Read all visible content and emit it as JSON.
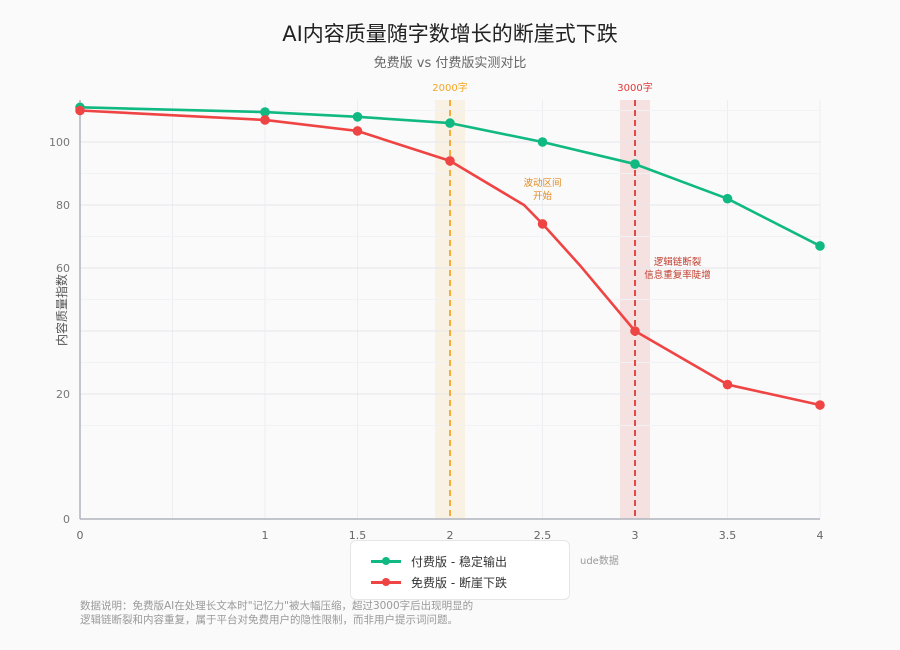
{
  "header": {
    "title": "AI内容质量随字数增长的断崖式下跌",
    "subtitle": "免费版 vs 付费版实测对比"
  },
  "footnote": {
    "line1": "数据说明：免费版AI在处理长文本时\"记忆力\"被大幅压缩，超过3000字后出现明显的",
    "line2": "逻辑链断裂和内容重复，属于平台对免费用户的隐性限制，而非用户提示词问题。"
  },
  "colors": {
    "paid": "#10b981",
    "free": "#ef4444",
    "mark2000": "#f5a623",
    "mark3000": "#e03a3a"
  },
  "chart_data": {
    "type": "line",
    "title": "AI内容质量随字数增长的断崖式下跌",
    "subtitle": "免费版 vs 付费版实测对比",
    "ylabel": "内容质量指数",
    "xlabel_visible_fragment": "ude数据",
    "x_ticks": [
      "0",
      "1",
      "1.5",
      "2",
      "2.5",
      "3",
      "3.5",
      "4"
    ],
    "y_ticks": [
      "100",
      "80",
      "60",
      "20",
      "0"
    ],
    "xlim": [
      0,
      4
    ],
    "grid": true,
    "legend_position": "bottom-center",
    "series": [
      {
        "name": "付费版 - 稳定输出",
        "color": "#10b981",
        "x": [
          0,
          1,
          1.5,
          2,
          2.5,
          3,
          3.5,
          4
        ],
        "y": [
          111,
          109.5,
          108,
          106,
          100,
          93,
          82,
          67
        ],
        "markers": [
          true,
          true,
          true,
          true,
          true,
          true,
          true,
          true
        ]
      },
      {
        "name": "免费版 - 断崖下跌",
        "color": "#ef4444",
        "x": [
          0,
          1,
          1.5,
          2,
          2.4,
          2.5,
          2.7,
          3,
          3.5,
          4
        ],
        "y": [
          110,
          107,
          103.5,
          94,
          80,
          74,
          61,
          40,
          23,
          16.5
        ],
        "markers": [
          true,
          true,
          true,
          true,
          false,
          true,
          false,
          true,
          true,
          true
        ]
      }
    ],
    "markers_vertical": [
      {
        "x": 2,
        "label": "2000字",
        "color": "#f5a623"
      },
      {
        "x": 3,
        "label": "3000字",
        "color": "#e03a3a"
      }
    ],
    "annotations": [
      {
        "x": 2.5,
        "y": 86,
        "lines": [
          "波动区间",
          "开始"
        ],
        "color": "#e08a1e"
      },
      {
        "x": 3.23,
        "y": 61,
        "lines": [
          "逻辑链断裂",
          "信息重复率陡增"
        ],
        "color": "#c0392b"
      }
    ]
  }
}
